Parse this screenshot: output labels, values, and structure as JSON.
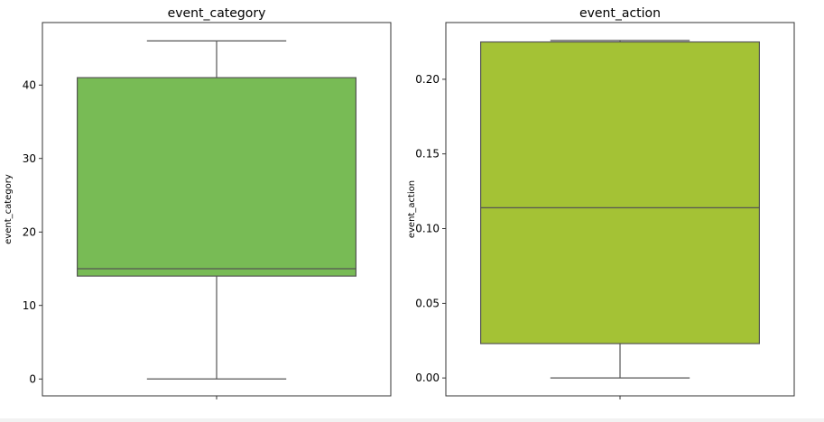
{
  "chart_data": [
    {
      "type": "box",
      "title": "event_category",
      "xlabel": "",
      "ylabel": "event_category",
      "ylim": [
        -2.3,
        48.5
      ],
      "yticks": [
        0,
        10,
        20,
        30,
        40
      ],
      "ytick_labels": [
        "0",
        "10",
        "20",
        "30",
        "40"
      ],
      "box": {
        "min": 0,
        "q1": 14,
        "median": 15,
        "q3": 41,
        "max": 46
      },
      "color": "#78bb55",
      "grid": false
    },
    {
      "type": "box",
      "title": "event_action",
      "xlabel": "",
      "ylabel": "event_action",
      "ylim": [
        -0.012,
        0.238
      ],
      "yticks": [
        0.0,
        0.05,
        0.1,
        0.15,
        0.2
      ],
      "ytick_labels": [
        "0.00",
        "0.05",
        "0.10",
        "0.15",
        "0.20"
      ],
      "box": {
        "min": 0.0,
        "q1": 0.023,
        "median": 0.114,
        "q3": 0.225,
        "max": 0.226
      },
      "color": "#a4c235",
      "grid": false
    }
  ]
}
